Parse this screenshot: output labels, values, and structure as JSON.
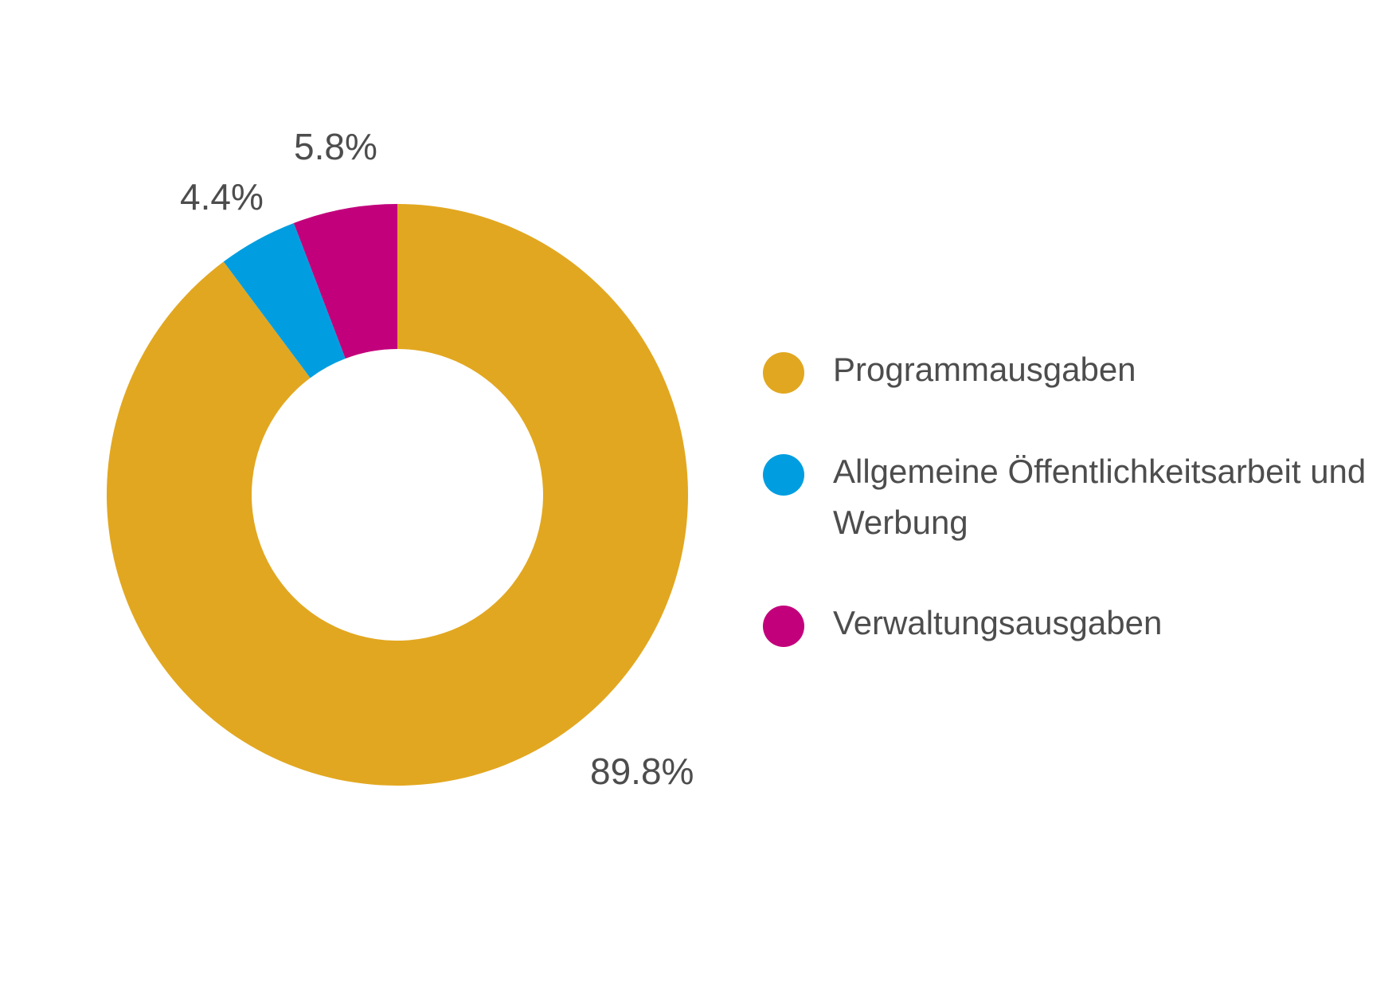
{
  "chart_data": {
    "type": "pie",
    "donut": true,
    "slices": [
      {
        "label": "Programmausgaben",
        "value": 89.8,
        "value_label": "89.8%",
        "color": "#E2A720"
      },
      {
        "label": "Allgemeine Öffentlichkeitsarbeit und Werbung",
        "value": 4.4,
        "value_label": "4.4%",
        "color": "#009EE0"
      },
      {
        "label": "Verwaltungsausgaben",
        "value": 5.8,
        "value_label": "5.8%",
        "color": "#C2007B"
      }
    ],
    "legend_position": "right",
    "title": ""
  }
}
